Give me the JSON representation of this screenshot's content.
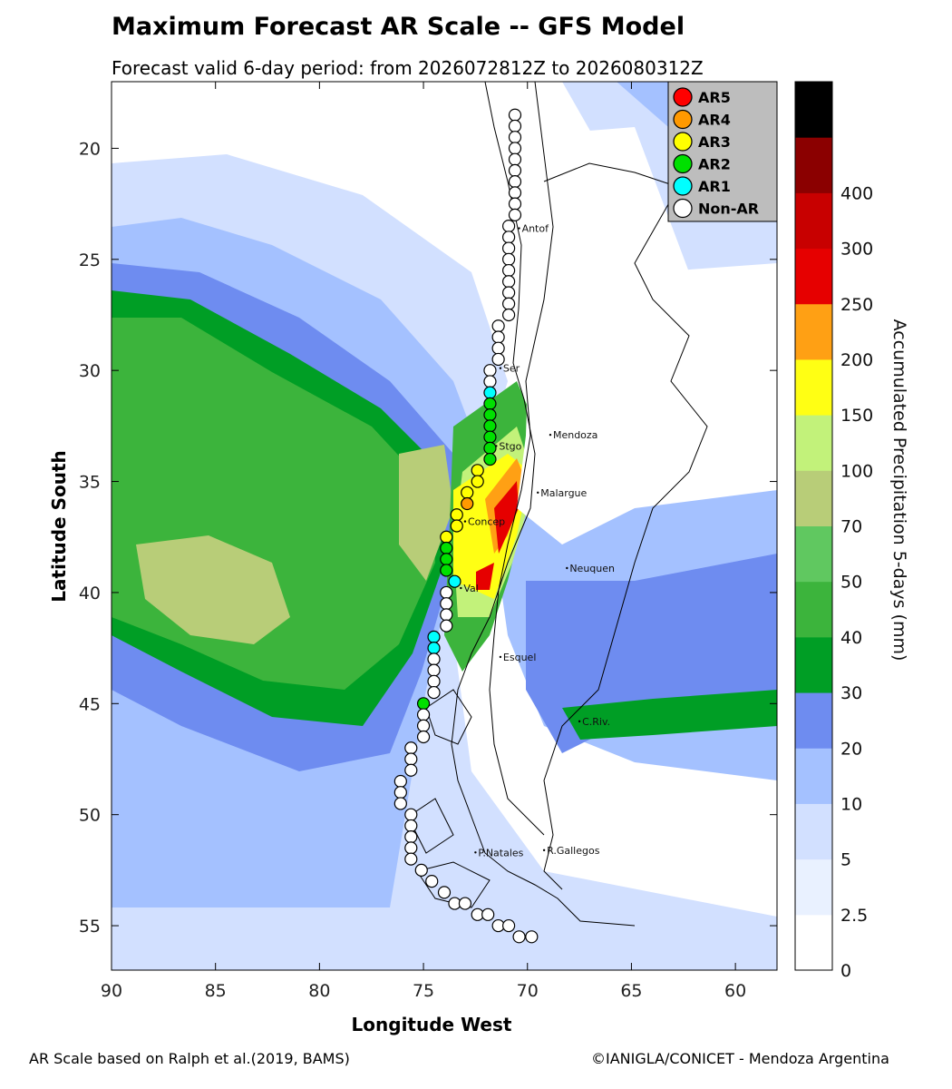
{
  "title": "Maximum Forecast AR Scale -- GFS Model",
  "subtitle": "Forecast valid 6-day period: from 2026072812Z to 2026080312Z",
  "footer": {
    "left": "AR Scale based on Ralph et al.(2019, BAMS)",
    "right": "©IANIGLA/CONICET - Mendoza Argentina"
  },
  "axes": {
    "xlabel": "Longitude West",
    "ylabel": "Latitude South",
    "xlim": [
      90,
      58
    ],
    "ylim": [
      57,
      17
    ],
    "xticks": [
      "90",
      "85",
      "80",
      "75",
      "70",
      "65",
      "60"
    ],
    "yticks": [
      "20",
      "25",
      "30",
      "35",
      "40",
      "45",
      "50",
      "55"
    ]
  },
  "colorbar": {
    "label": "Accumulated Precipitation 5-days (mm)",
    "levels": [
      "0",
      "2.5",
      "5",
      "10",
      "20",
      "30",
      "40",
      "50",
      "70",
      "100",
      "150",
      "200",
      "250",
      "300",
      "400"
    ],
    "colors": [
      "#ffffff",
      "#e9f1ff",
      "#d2e0ff",
      "#a4c1ff",
      "#6e8cf0",
      "#009e25",
      "#3cb43c",
      "#60c860",
      "#b8cd78",
      "#c2f27a",
      "#ffff14",
      "#ffa014",
      "#e60000",
      "#c80000",
      "#8b0000",
      "#000000"
    ]
  },
  "legend": {
    "items": [
      {
        "label": "AR5",
        "color": "#ff0000"
      },
      {
        "label": "AR4",
        "color": "#ff9900"
      },
      {
        "label": "AR3",
        "color": "#ffff00"
      },
      {
        "label": "AR2",
        "color": "#00e000"
      },
      {
        "label": "AR1",
        "color": "#00ffff"
      },
      {
        "label": "Non-AR",
        "color": "#ffffff"
      }
    ]
  },
  "cities": [
    {
      "name": "Antof",
      "lon": 70.4,
      "lat": 23.6
    },
    {
      "name": "Ser",
      "lon": 71.3,
      "lat": 29.9
    },
    {
      "name": "Stgo",
      "lon": 71.5,
      "lat": 33.4
    },
    {
      "name": "Mendoza",
      "lon": 68.9,
      "lat": 32.9
    },
    {
      "name": "Malargue",
      "lon": 69.5,
      "lat": 35.5
    },
    {
      "name": "Concep",
      "lon": 73.0,
      "lat": 36.8
    },
    {
      "name": "Val",
      "lon": 73.2,
      "lat": 39.8
    },
    {
      "name": "Neuquen",
      "lon": 68.1,
      "lat": 38.9
    },
    {
      "name": "Esquel",
      "lon": 71.3,
      "lat": 42.9
    },
    {
      "name": "C.Riv.",
      "lon": 67.5,
      "lat": 45.8
    },
    {
      "name": "P.Natales",
      "lon": 72.5,
      "lat": 51.7
    },
    {
      "name": "R.Gallegos",
      "lon": 69.2,
      "lat": 51.6
    }
  ],
  "ar_points": [
    {
      "lon": 70.6,
      "lat": 18.5,
      "cat": 0
    },
    {
      "lon": 70.6,
      "lat": 19.0,
      "cat": 0
    },
    {
      "lon": 70.6,
      "lat": 19.5,
      "cat": 0
    },
    {
      "lon": 70.6,
      "lat": 20.0,
      "cat": 0
    },
    {
      "lon": 70.6,
      "lat": 20.5,
      "cat": 0
    },
    {
      "lon": 70.6,
      "lat": 21.0,
      "cat": 0
    },
    {
      "lon": 70.6,
      "lat": 21.5,
      "cat": 0
    },
    {
      "lon": 70.6,
      "lat": 22.0,
      "cat": 0
    },
    {
      "lon": 70.6,
      "lat": 22.5,
      "cat": 0
    },
    {
      "lon": 70.6,
      "lat": 23.0,
      "cat": 0
    },
    {
      "lon": 70.9,
      "lat": 23.5,
      "cat": 0
    },
    {
      "lon": 70.9,
      "lat": 24.0,
      "cat": 0
    },
    {
      "lon": 70.9,
      "lat": 24.5,
      "cat": 0
    },
    {
      "lon": 70.9,
      "lat": 25.0,
      "cat": 0
    },
    {
      "lon": 70.9,
      "lat": 25.5,
      "cat": 0
    },
    {
      "lon": 70.9,
      "lat": 26.0,
      "cat": 0
    },
    {
      "lon": 70.9,
      "lat": 26.5,
      "cat": 0
    },
    {
      "lon": 70.9,
      "lat": 27.0,
      "cat": 0
    },
    {
      "lon": 70.9,
      "lat": 27.5,
      "cat": 0
    },
    {
      "lon": 71.4,
      "lat": 28.0,
      "cat": 0
    },
    {
      "lon": 71.4,
      "lat": 28.5,
      "cat": 0
    },
    {
      "lon": 71.4,
      "lat": 29.0,
      "cat": 0
    },
    {
      "lon": 71.4,
      "lat": 29.5,
      "cat": 0
    },
    {
      "lon": 71.8,
      "lat": 30.0,
      "cat": 0
    },
    {
      "lon": 71.8,
      "lat": 30.5,
      "cat": 0
    },
    {
      "lon": 71.8,
      "lat": 31.0,
      "cat": 1
    },
    {
      "lon": 71.8,
      "lat": 31.5,
      "cat": 2
    },
    {
      "lon": 71.8,
      "lat": 32.0,
      "cat": 2
    },
    {
      "lon": 71.8,
      "lat": 32.5,
      "cat": 2
    },
    {
      "lon": 71.8,
      "lat": 33.0,
      "cat": 2
    },
    {
      "lon": 71.8,
      "lat": 33.5,
      "cat": 2
    },
    {
      "lon": 71.8,
      "lat": 34.0,
      "cat": 2
    },
    {
      "lon": 72.4,
      "lat": 34.5,
      "cat": 3
    },
    {
      "lon": 72.4,
      "lat": 35.0,
      "cat": 3
    },
    {
      "lon": 72.9,
      "lat": 35.5,
      "cat": 3
    },
    {
      "lon": 72.9,
      "lat": 36.0,
      "cat": 4
    },
    {
      "lon": 73.4,
      "lat": 36.5,
      "cat": 3
    },
    {
      "lon": 73.4,
      "lat": 37.0,
      "cat": 3
    },
    {
      "lon": 73.9,
      "lat": 37.5,
      "cat": 3
    },
    {
      "lon": 73.9,
      "lat": 38.0,
      "cat": 2
    },
    {
      "lon": 73.9,
      "lat": 38.5,
      "cat": 2
    },
    {
      "lon": 73.9,
      "lat": 39.0,
      "cat": 2
    },
    {
      "lon": 73.5,
      "lat": 39.5,
      "cat": 1
    },
    {
      "lon": 73.9,
      "lat": 40.0,
      "cat": 0
    },
    {
      "lon": 73.9,
      "lat": 40.5,
      "cat": 0
    },
    {
      "lon": 73.9,
      "lat": 41.0,
      "cat": 0
    },
    {
      "lon": 73.9,
      "lat": 41.5,
      "cat": 0
    },
    {
      "lon": 74.5,
      "lat": 42.0,
      "cat": 1
    },
    {
      "lon": 74.5,
      "lat": 42.5,
      "cat": 1
    },
    {
      "lon": 74.5,
      "lat": 43.0,
      "cat": 0
    },
    {
      "lon": 74.5,
      "lat": 43.5,
      "cat": 0
    },
    {
      "lon": 74.5,
      "lat": 44.0,
      "cat": 0
    },
    {
      "lon": 74.5,
      "lat": 44.5,
      "cat": 0
    },
    {
      "lon": 75.0,
      "lat": 45.0,
      "cat": 2
    },
    {
      "lon": 75.0,
      "lat": 45.5,
      "cat": 0
    },
    {
      "lon": 75.0,
      "lat": 46.0,
      "cat": 0
    },
    {
      "lon": 75.0,
      "lat": 46.5,
      "cat": 0
    },
    {
      "lon": 75.6,
      "lat": 47.0,
      "cat": 0
    },
    {
      "lon": 75.6,
      "lat": 47.5,
      "cat": 0
    },
    {
      "lon": 75.6,
      "lat": 48.0,
      "cat": 0
    },
    {
      "lon": 76.1,
      "lat": 48.5,
      "cat": 0
    },
    {
      "lon": 76.1,
      "lat": 49.0,
      "cat": 0
    },
    {
      "lon": 76.1,
      "lat": 49.5,
      "cat": 0
    },
    {
      "lon": 75.6,
      "lat": 50.0,
      "cat": 0
    },
    {
      "lon": 75.6,
      "lat": 50.5,
      "cat": 0
    },
    {
      "lon": 75.6,
      "lat": 51.0,
      "cat": 0
    },
    {
      "lon": 75.6,
      "lat": 51.5,
      "cat": 0
    },
    {
      "lon": 75.6,
      "lat": 52.0,
      "cat": 0
    },
    {
      "lon": 75.1,
      "lat": 52.5,
      "cat": 0
    },
    {
      "lon": 74.6,
      "lat": 53.0,
      "cat": 0
    },
    {
      "lon": 74.0,
      "lat": 53.5,
      "cat": 0
    },
    {
      "lon": 73.5,
      "lat": 54.0,
      "cat": 0
    },
    {
      "lon": 73.0,
      "lat": 54.0,
      "cat": 0
    },
    {
      "lon": 72.4,
      "lat": 54.5,
      "cat": 0
    },
    {
      "lon": 71.9,
      "lat": 54.5,
      "cat": 0
    },
    {
      "lon": 71.4,
      "lat": 55.0,
      "cat": 0
    },
    {
      "lon": 70.9,
      "lat": 55.0,
      "cat": 0
    },
    {
      "lon": 70.4,
      "lat": 55.5,
      "cat": 0
    },
    {
      "lon": 69.8,
      "lat": 55.5,
      "cat": 0
    }
  ]
}
